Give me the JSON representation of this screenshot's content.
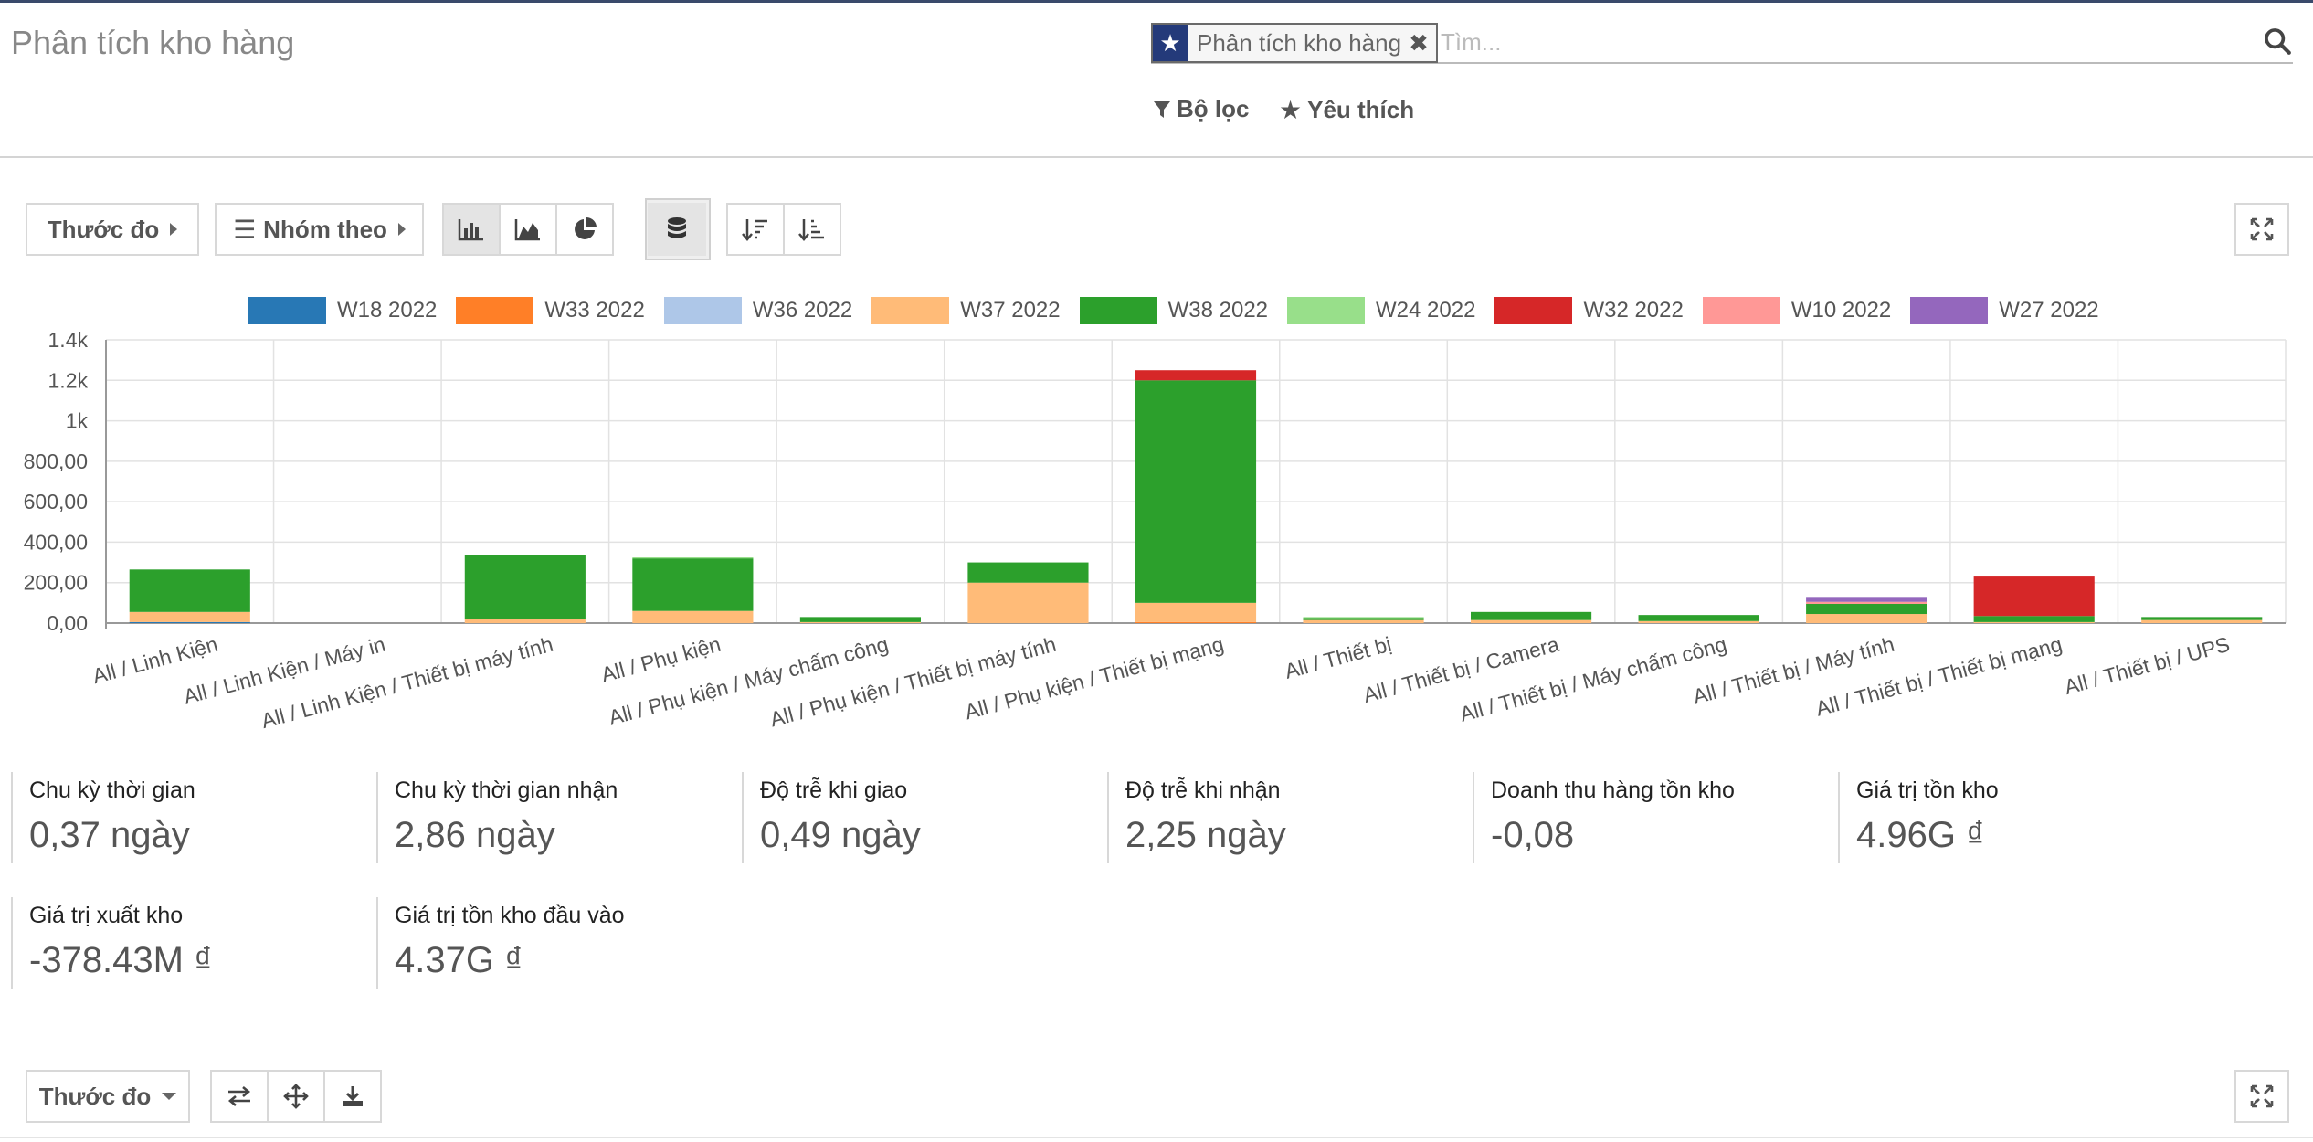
{
  "page_title": "Phân tích kho hàng",
  "search": {
    "facet_label": "Phân tích kho hàng",
    "placeholder": "Tìm..."
  },
  "filters": {
    "filter_label": "Bộ lọc",
    "favorite_label": "Yêu thích"
  },
  "toolbar": {
    "measures_label": "Thước đo",
    "group_by_label": "Nhóm theo"
  },
  "colors": {
    "W18 2022": "#2878b5",
    "W33 2022": "#ff7f27",
    "W36 2022": "#aec7e8",
    "W37 2022": "#ffbb78",
    "W38 2022": "#2ca02c",
    "W24 2022": "#98df8a",
    "W32 2022": "#d62728",
    "W10 2022": "#ff9896",
    "W27 2022": "#9467bd"
  },
  "chart_data": {
    "type": "bar",
    "stacked": true,
    "categories": [
      "All / Linh Kiện",
      "All / Linh Kiện / Máy in",
      "All / Linh Kiện / Thiết bị máy tính",
      "All / Phụ kiện",
      "All / Phụ kiện / Máy chấm công",
      "All / Phụ kiện / Thiết bị máy tính",
      "All / Phụ kiện / Thiết bị mạng",
      "All / Thiết bị",
      "All / Thiết bị / Camera",
      "All / Thiết bị / Máy chấm công",
      "All / Thiết bị / Máy tính",
      "All / Thiết bị / Thiết bị mạng",
      "All / Thiết bị / UPS"
    ],
    "series": [
      {
        "name": "W18 2022",
        "values": [
          5,
          0,
          0,
          0,
          0,
          0,
          0,
          0,
          0,
          0,
          0,
          0,
          0
        ]
      },
      {
        "name": "W33 2022",
        "values": [
          0,
          0,
          0,
          0,
          0,
          0,
          5,
          0,
          0,
          0,
          0,
          0,
          0
        ]
      },
      {
        "name": "W36 2022",
        "values": [
          0,
          0,
          0,
          0,
          0,
          0,
          0,
          0,
          0,
          0,
          0,
          0,
          0
        ]
      },
      {
        "name": "W37 2022",
        "values": [
          50,
          0,
          20,
          60,
          5,
          200,
          95,
          15,
          15,
          10,
          45,
          5,
          15
        ]
      },
      {
        "name": "W38 2022",
        "values": [
          210,
          0,
          315,
          260,
          25,
          100,
          1100,
          10,
          40,
          30,
          50,
          30,
          15
        ]
      },
      {
        "name": "W24 2022",
        "values": [
          0,
          0,
          0,
          5,
          0,
          0,
          0,
          5,
          0,
          0,
          0,
          0,
          0
        ]
      },
      {
        "name": "W32 2022",
        "values": [
          0,
          0,
          0,
          0,
          0,
          0,
          50,
          0,
          0,
          0,
          0,
          195,
          0
        ]
      },
      {
        "name": "W10 2022",
        "values": [
          0,
          0,
          0,
          0,
          0,
          0,
          0,
          0,
          0,
          0,
          10,
          0,
          0
        ]
      },
      {
        "name": "W27 2022",
        "values": [
          0,
          0,
          0,
          0,
          0,
          0,
          0,
          0,
          0,
          0,
          20,
          0,
          0
        ]
      }
    ],
    "y_ticks": [
      "0,00",
      "200,00",
      "400,00",
      "600,00",
      "800,00",
      "1k",
      "1.2k",
      "1.4k"
    ],
    "ylim": [
      0,
      1400
    ],
    "grid": true,
    "legend_position": "top"
  },
  "kpis": [
    {
      "label": "Chu kỳ thời gian",
      "value": "0,37 ngày"
    },
    {
      "label": "Chu kỳ thời gian nhận",
      "value": "2,86 ngày"
    },
    {
      "label": "Độ trễ khi giao",
      "value": "0,49 ngày"
    },
    {
      "label": "Độ trễ khi nhận",
      "value": "2,25 ngày"
    },
    {
      "label": "Doanh thu hàng tồn kho",
      "value": "-0,08"
    },
    {
      "label": "Giá trị tồn kho",
      "value": "4.96G ₫"
    },
    {
      "label": "Giá trị xuất kho",
      "value": "-378.43M ₫"
    },
    {
      "label": "Giá trị tồn kho đầu vào",
      "value": "4.37G ₫"
    }
  ],
  "pivot_toolbar": {
    "measures_label": "Thước đo"
  }
}
